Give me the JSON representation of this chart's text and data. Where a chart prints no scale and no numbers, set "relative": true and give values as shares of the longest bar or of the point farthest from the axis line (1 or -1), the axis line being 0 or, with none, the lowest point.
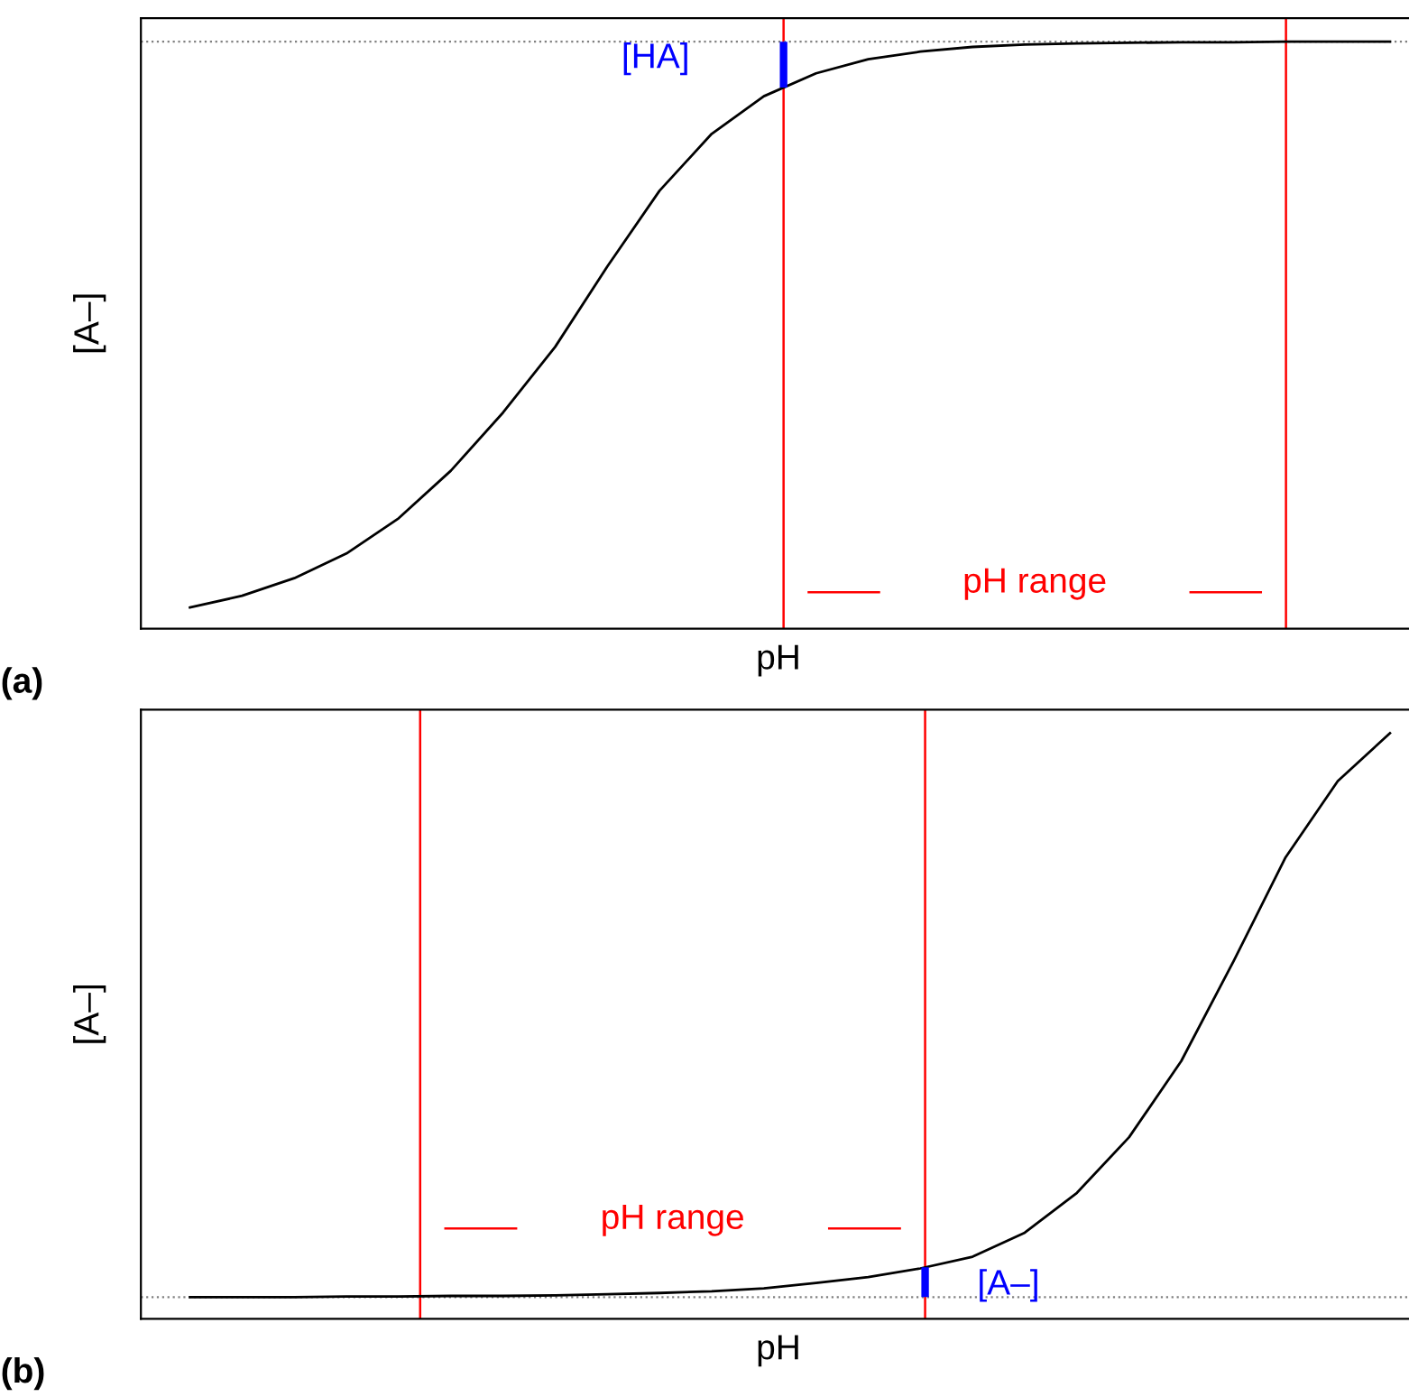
{
  "chart_data": [
    {
      "type": "line",
      "title": "(a)",
      "xlabel": "pH",
      "ylabel": "[A–]",
      "relative": true,
      "tick_labels": false,
      "categories": [
        null,
        null,
        null,
        null,
        null,
        null,
        null,
        null,
        null,
        null,
        null,
        null,
        null,
        null,
        null,
        null,
        null,
        null,
        null,
        null,
        null,
        null,
        null,
        null
      ],
      "series": [
        {
          "color": "#000000",
          "values": [
            0.036,
            0.056,
            0.086,
            0.128,
            0.188,
            0.269,
            0.368,
            0.48,
            0.617,
            0.746,
            0.843,
            0.907,
            0.946,
            0.97,
            0.983,
            0.991,
            0.995,
            0.997,
            0.998,
            0.999,
            0.999,
            1,
            1,
            1
          ]
        }
      ],
      "ref_lines": [
        {
          "axis": "y",
          "value": 1,
          "color": "#808080",
          "line_style": "dotted"
        }
      ],
      "annotations": [
        "pH range",
        "[HA]"
      ]
    },
    {
      "type": "line",
      "title": "(b)",
      "xlabel": "pH",
      "ylabel": "[A–]",
      "relative": true,
      "tick_labels": false,
      "categories": [
        null,
        null,
        null,
        null,
        null,
        null,
        null,
        null,
        null,
        null,
        null,
        null,
        null,
        null,
        null,
        null,
        null,
        null,
        null,
        null,
        null,
        null,
        null,
        null
      ],
      "series": [
        {
          "color": "#000000",
          "values": [
            0.037,
            0.037,
            0.037,
            0.038,
            0.038,
            0.039,
            0.039,
            0.04,
            0.042,
            0.044,
            0.047,
            0.052,
            0.061,
            0.071,
            0.086,
            0.106,
            0.147,
            0.215,
            0.31,
            0.44,
            0.61,
            0.788,
            0.918,
            1
          ]
        }
      ],
      "ref_lines": [
        {
          "axis": "y",
          "value": 0.037,
          "color": "#808080",
          "line_style": "dotted"
        }
      ],
      "annotations": [
        "pH range",
        "[A–]"
      ]
    }
  ]
}
